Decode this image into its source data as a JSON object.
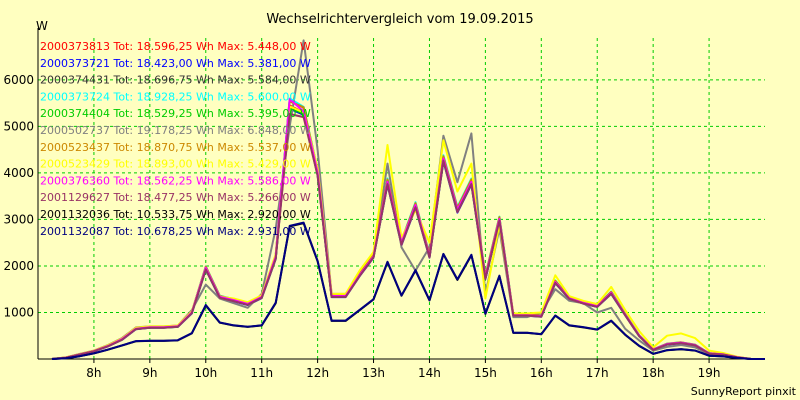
{
  "chart_data": {
    "type": "line",
    "title": "Wechselrichtervergleich vom 19.09.2015",
    "ylabel": "W",
    "footer": "SunnyReport pinxit",
    "ylim": [
      0,
      6900
    ],
    "y_ticks": [
      {
        "value": 1000,
        "label": "1000"
      },
      {
        "value": 2000,
        "label": "2000"
      },
      {
        "value": 3000,
        "label": "3000"
      },
      {
        "value": 4000,
        "label": "4000"
      },
      {
        "value": 5000,
        "label": "5000"
      },
      {
        "value": 6000,
        "label": "6000"
      }
    ],
    "x_range": [
      7.0,
      20.0
    ],
    "x_ticks": [
      {
        "value": 8,
        "label": "8h"
      },
      {
        "value": 9,
        "label": "9h"
      },
      {
        "value": 10,
        "label": "10h"
      },
      {
        "value": 11,
        "label": "11h"
      },
      {
        "value": 12,
        "label": "12h"
      },
      {
        "value": 13,
        "label": "13h"
      },
      {
        "value": 14,
        "label": "14h"
      },
      {
        "value": 15,
        "label": "15h"
      },
      {
        "value": 16,
        "label": "16h"
      },
      {
        "value": 17,
        "label": "17h"
      },
      {
        "value": 18,
        "label": "18h"
      },
      {
        "value": 19,
        "label": "19h"
      }
    ],
    "grid": true,
    "x": [
      7.25,
      7.5,
      7.75,
      8.0,
      8.25,
      8.5,
      8.75,
      9.0,
      9.25,
      9.5,
      9.75,
      10.0,
      10.25,
      10.5,
      10.75,
      11.0,
      11.25,
      11.5,
      11.75,
      12.0,
      12.25,
      12.5,
      12.75,
      13.0,
      13.25,
      13.5,
      13.75,
      14.0,
      14.25,
      14.5,
      14.75,
      15.0,
      15.25,
      15.5,
      15.75,
      16.0,
      16.25,
      16.5,
      16.75,
      17.0,
      17.25,
      17.5,
      17.75,
      18.0,
      18.25,
      18.5,
      18.75,
      19.0,
      19.25,
      19.5,
      19.75,
      20.0
    ],
    "series": [
      {
        "name": "2000373813 Tot: 18.596,25 Wh Max: 5.448,00 W",
        "color": "#ff0000",
        "values": [
          0,
          30,
          100,
          170,
          280,
          420,
          650,
          680,
          680,
          700,
          1000,
          1950,
          1330,
          1260,
          1180,
          1330,
          2180,
          5448,
          5300,
          4000,
          1350,
          1350,
          1800,
          2200,
          3800,
          2500,
          3300,
          2200,
          4300,
          3200,
          3800,
          1750,
          3000,
          940,
          940,
          920,
          1650,
          1300,
          1200,
          1130,
          1420,
          950,
          500,
          200,
          320,
          350,
          300,
          120,
          100,
          40,
          0,
          0
        ]
      },
      {
        "name": "2000373721 Tot: 18.423,00 Wh Max: 5.381,00 W",
        "color": "#0000ff",
        "values": [
          0,
          30,
          95,
          165,
          270,
          410,
          640,
          670,
          670,
          690,
          980,
          1920,
          1310,
          1240,
          1160,
          1310,
          2150,
          5381,
          5250,
          3950,
          1330,
          1330,
          1780,
          2180,
          3750,
          2450,
          3250,
          2180,
          4250,
          3150,
          3750,
          1720,
          2960,
          930,
          930,
          910,
          1630,
          1290,
          1190,
          1120,
          1400,
          940,
          490,
          195,
          310,
          340,
          290,
          115,
          95,
          38,
          0,
          0
        ]
      },
      {
        "name": "2000374431 Tot: 18.696,75 Wh Max: 5.584,00 W",
        "color": "#333333",
        "values": [
          0,
          32,
          102,
          172,
          285,
          430,
          660,
          690,
          690,
          710,
          1010,
          1980,
          1350,
          1280,
          1200,
          1350,
          2220,
          5584,
          5400,
          4050,
          1370,
          1370,
          1820,
          2230,
          3850,
          2530,
          3340,
          2230,
          4350,
          3240,
          3850,
          1780,
          3040,
          950,
          950,
          930,
          1670,
          1320,
          1210,
          1140,
          1440,
          960,
          505,
          205,
          325,
          355,
          305,
          122,
          102,
          42,
          0,
          0
        ]
      },
      {
        "name": "2000373724 Tot: 18.928,25 Wh Max: 5.600,00 W",
        "color": "#00ffff",
        "values": [
          0,
          33,
          104,
          175,
          290,
          435,
          665,
          695,
          695,
          715,
          1015,
          1990,
          1360,
          1290,
          1210,
          1360,
          2240,
          5600,
          5420,
          4080,
          1380,
          1380,
          1840,
          2250,
          3880,
          2550,
          3370,
          2250,
          4380,
          3270,
          3880,
          1800,
          3060,
          960,
          960,
          940,
          1690,
          1330,
          1220,
          1150,
          1450,
          970,
          510,
          208,
          330,
          360,
          310,
          124,
          104,
          43,
          0,
          0
        ]
      },
      {
        "name": "2000374404 Tot: 18.529,25 Wh Max: 5.395,00 W",
        "color": "#00cc00",
        "values": [
          0,
          30,
          98,
          168,
          275,
          415,
          645,
          675,
          675,
          695,
          990,
          1930,
          1320,
          1250,
          1170,
          1320,
          2160,
          5395,
          5270,
          3970,
          1340,
          1340,
          1790,
          2190,
          3770,
          2470,
          3270,
          2190,
          4270,
          3170,
          3770,
          1730,
          2980,
          935,
          935,
          915,
          1640,
          1295,
          1195,
          1125,
          1410,
          945,
          495,
          198,
          315,
          345,
          295,
          118,
          98,
          39,
          0,
          0
        ]
      },
      {
        "name": "2000502737 Tot: 19.178,25 Wh Max: 6.848,00 W",
        "color": "#808080",
        "values": [
          0,
          35,
          110,
          180,
          300,
          450,
          680,
          700,
          700,
          720,
          1050,
          1600,
          1300,
          1200,
          1100,
          1400,
          2800,
          5000,
          6848,
          4500,
          1400,
          1400,
          1800,
          2200,
          4200,
          2400,
          1900,
          2400,
          4800,
          3800,
          4850,
          1400,
          2800,
          900,
          900,
          1000,
          1500,
          1250,
          1200,
          1000,
          1100,
          650,
          400,
          180,
          260,
          300,
          250,
          100,
          80,
          30,
          0,
          0
        ]
      },
      {
        "name": "2000523437 Tot: 18.870,75 Wh Max: 5.537,00 W",
        "color": "#cc8800",
        "values": [
          0,
          33,
          103,
          174,
          288,
          432,
          662,
          692,
          692,
          712,
          1012,
          1985,
          1355,
          1285,
          1205,
          1355,
          2230,
          5537,
          5410,
          4060,
          1375,
          1375,
          1830,
          2240,
          3860,
          2540,
          3350,
          2240,
          4360,
          3250,
          3860,
          1790,
          3050,
          955,
          955,
          935,
          1680,
          1325,
          1215,
          1145,
          1445,
          965,
          508,
          206,
          328,
          358,
          308,
          123,
          103,
          42,
          0,
          0
        ]
      },
      {
        "name": "2000523429 Tot: 18.893,00 Wh Max: 5.429,00 W",
        "color": "#ffff00",
        "values": [
          0,
          34,
          106,
          178,
          295,
          440,
          670,
          700,
          700,
          720,
          1020,
          1950,
          1340,
          1300,
          1220,
          1370,
          2250,
          5429,
          5300,
          4100,
          1400,
          1400,
          1900,
          2300,
          4600,
          2600,
          3200,
          2500,
          4700,
          3600,
          4200,
          1300,
          2900,
          980,
          980,
          1000,
          1800,
          1350,
          1250,
          1180,
          1550,
          1050,
          600,
          250,
          500,
          550,
          450,
          180,
          130,
          50,
          0,
          0
        ]
      },
      {
        "name": "2000376360 Tot: 18.562,25 Wh Max: 5.586,00 W",
        "color": "#ff00ff",
        "values": [
          0,
          31,
          100,
          170,
          280,
          425,
          652,
          682,
          682,
          702,
          1002,
          1960,
          1335,
          1265,
          1185,
          1335,
          2200,
          5586,
          5320,
          4010,
          1355,
          1355,
          1805,
          2205,
          3810,
          2505,
          3310,
          2205,
          4310,
          3210,
          3810,
          1755,
          3010,
          942,
          942,
          922,
          1655,
          1305,
          1205,
          1135,
          1425,
          952,
          502,
          202,
          322,
          352,
          302,
          121,
          101,
          41,
          0,
          0
        ]
      },
      {
        "name": "2001129627 Tot: 18.477,25 Wh Max: 5.266,00 W",
        "color": "#993366",
        "values": [
          0,
          30,
          97,
          167,
          272,
          412,
          642,
          672,
          672,
          692,
          985,
          1925,
          1315,
          1245,
          1165,
          1315,
          2155,
          5266,
          5200,
          3940,
          1335,
          1335,
          1785,
          2185,
          3760,
          2460,
          3260,
          2185,
          4260,
          3160,
          3760,
          1725,
          2970,
          932,
          932,
          912,
          1635,
          1292,
          1192,
          1122,
          1405,
          942,
          492,
          196,
          312,
          342,
          292,
          116,
          96,
          38,
          0,
          0
        ]
      },
      {
        "name": "2001132036 Tot: 10.533,75 Wh Max: 2.920,00 W",
        "color": "#000000",
        "values": [
          0,
          15,
          60,
          120,
          200,
          290,
          380,
          390,
          390,
          400,
          550,
          1150,
          780,
          720,
          690,
          720,
          1200,
          2850,
          2920,
          2100,
          820,
          820,
          1050,
          1280,
          2080,
          1360,
          1900,
          1260,
          2250,
          1700,
          2230,
          970,
          1780,
          560,
          560,
          530,
          930,
          720,
          680,
          630,
          820,
          520,
          280,
          110,
          190,
          210,
          180,
          70,
          55,
          22,
          0,
          0
        ]
      },
      {
        "name": "2001132087 Tot: 10.678,25 Wh Max: 2.931,00 W",
        "color": "#000080",
        "values": [
          0,
          16,
          62,
          122,
          203,
          293,
          384,
          394,
          394,
          404,
          555,
          1160,
          785,
          725,
          695,
          725,
          1210,
          2860,
          2931,
          2110,
          825,
          825,
          1055,
          1285,
          2090,
          1365,
          1910,
          1265,
          2260,
          1710,
          2240,
          975,
          1790,
          565,
          565,
          535,
          935,
          725,
          685,
          635,
          825,
          525,
          283,
          112,
          192,
          212,
          182,
          71,
          56,
          23,
          0,
          0
        ]
      }
    ]
  }
}
